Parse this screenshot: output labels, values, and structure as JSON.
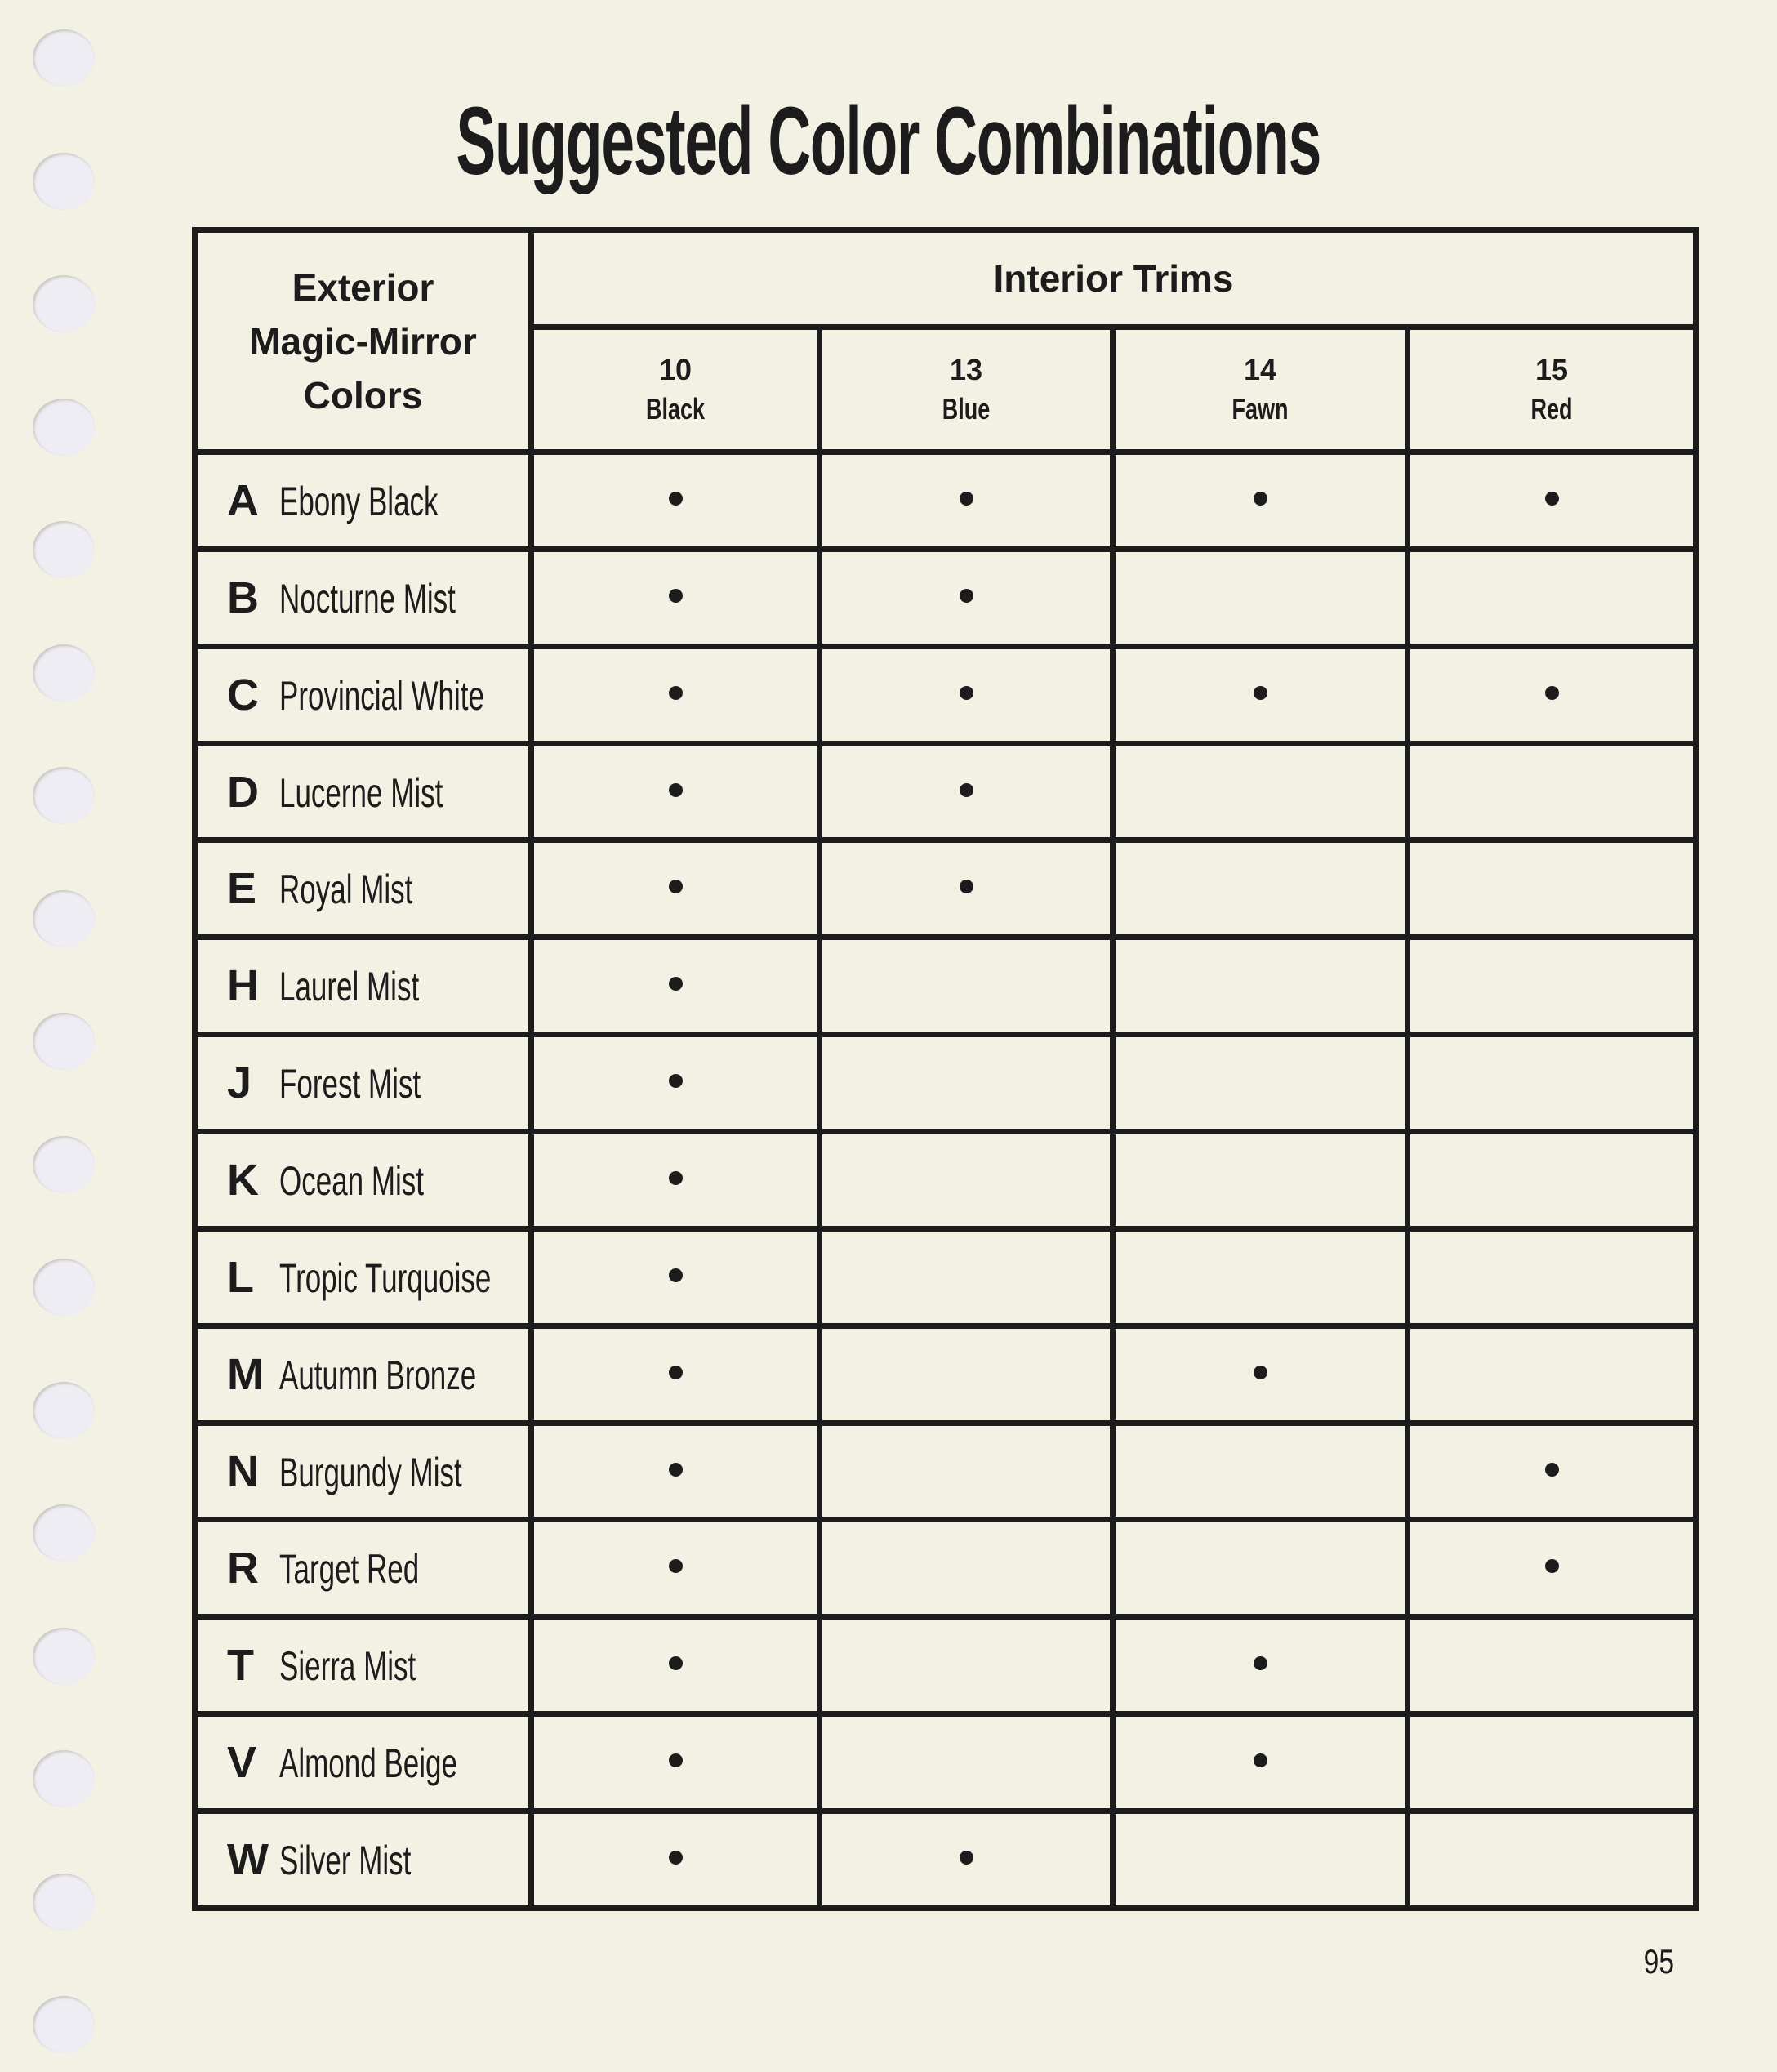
{
  "title": "Suggested Color Combinations",
  "table": {
    "exterior_header": [
      "Exterior",
      "Magic-Mirror",
      "Colors"
    ],
    "interior_header": "Interior Trims",
    "columns": [
      {
        "code": "10",
        "name": "Black"
      },
      {
        "code": "13",
        "name": "Blue"
      },
      {
        "code": "14",
        "name": "Fawn"
      },
      {
        "code": "15",
        "name": "Red"
      }
    ],
    "rows": [
      {
        "letter": "A",
        "name": "Ebony Black",
        "marks": [
          true,
          true,
          true,
          true
        ]
      },
      {
        "letter": "B",
        "name": "Nocturne Mist",
        "marks": [
          true,
          true,
          false,
          false
        ]
      },
      {
        "letter": "C",
        "name": "Provincial White",
        "marks": [
          true,
          true,
          true,
          true
        ]
      },
      {
        "letter": "D",
        "name": "Lucerne Mist",
        "marks": [
          true,
          true,
          false,
          false
        ]
      },
      {
        "letter": "E",
        "name": "Royal Mist",
        "marks": [
          true,
          true,
          false,
          false
        ]
      },
      {
        "letter": "H",
        "name": "Laurel Mist",
        "marks": [
          true,
          false,
          false,
          false
        ]
      },
      {
        "letter": "J",
        "name": "Forest Mist",
        "marks": [
          true,
          false,
          false,
          false
        ]
      },
      {
        "letter": "K",
        "name": "Ocean Mist",
        "marks": [
          true,
          false,
          false,
          false
        ]
      },
      {
        "letter": "L",
        "name": "Tropic Turquoise",
        "marks": [
          true,
          false,
          false,
          false
        ]
      },
      {
        "letter": "M",
        "name": "Autumn Bronze",
        "marks": [
          true,
          false,
          true,
          false
        ]
      },
      {
        "letter": "N",
        "name": "Burgundy Mist",
        "marks": [
          true,
          false,
          false,
          true
        ]
      },
      {
        "letter": "R",
        "name": "Target Red",
        "marks": [
          true,
          false,
          false,
          true
        ]
      },
      {
        "letter": "T",
        "name": "Sierra Mist",
        "marks": [
          true,
          false,
          true,
          false
        ]
      },
      {
        "letter": "V",
        "name": "Almond Beige",
        "marks": [
          true,
          false,
          true,
          false
        ]
      },
      {
        "letter": "W",
        "name": "Silver Mist",
        "marks": [
          true,
          true,
          false,
          false
        ]
      }
    ]
  },
  "page_number": "95",
  "colors": {
    "paper": "#f3f0e4",
    "ink": "#1c1c1c",
    "punch_hole": "#ededf3"
  }
}
